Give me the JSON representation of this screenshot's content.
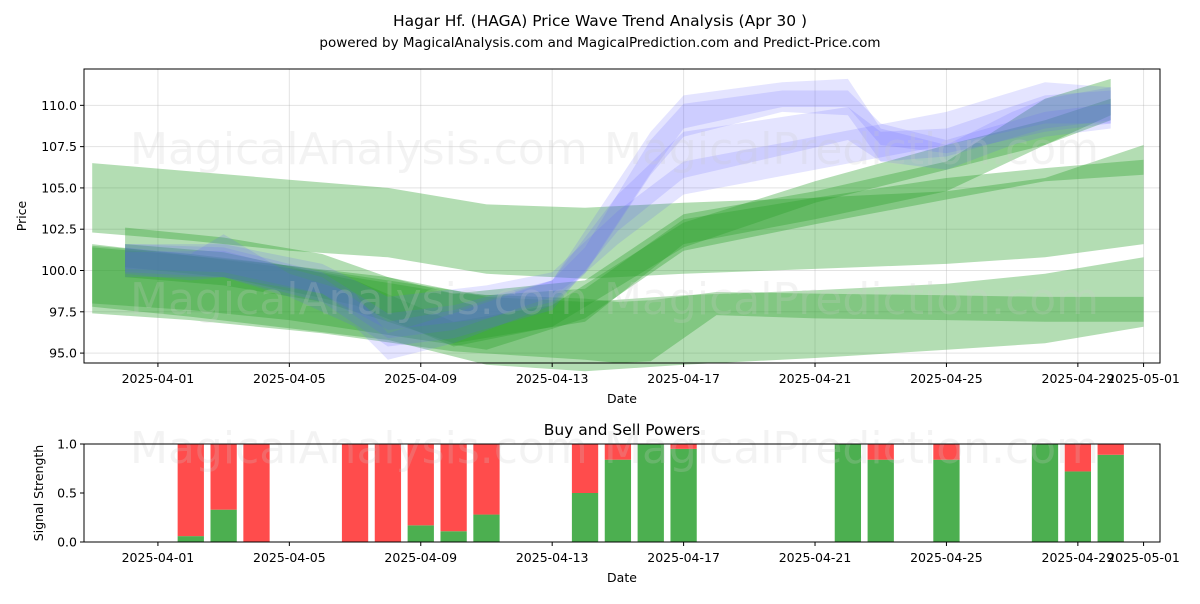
{
  "chart_data": [
    {
      "type": "area",
      "title": "Hagar Hf. (HAGA) Price Wave Trend Analysis (Apr 30 )",
      "subtitle": "powered by MagicalAnalysis.com and MagicalPrediction.com and Predict-Price.com",
      "xlabel": "Date",
      "ylabel": "Price",
      "x_ticks": [
        "2025-04-01",
        "2025-04-05",
        "2025-04-09",
        "2025-04-13",
        "2025-04-17",
        "2025-04-21",
        "2025-04-25",
        "2025-04-29",
        "2025-05-01"
      ],
      "y_ticks": [
        "95.0",
        "97.5",
        "100.0",
        "102.5",
        "105.0",
        "107.5",
        "110.0"
      ],
      "xlim": [
        "2025-03-29T18:00",
        "2025-05-01T12:00"
      ],
      "ylim": [
        94.4,
        112.2
      ],
      "grid": true,
      "watermarks": [
        "MagicalAnalysis.com",
        "MagicalPrediction.com"
      ],
      "colors": {
        "green": "#2ca02c",
        "blue": "#6060ff"
      },
      "green_bands": [
        {
          "x": [
            "2025-03-30",
            "2025-04-02",
            "2025-04-05",
            "2025-04-08",
            "2025-04-11",
            "2025-04-14",
            "2025-04-17",
            "2025-04-21",
            "2025-04-25",
            "2025-04-28",
            "2025-05-01"
          ],
          "lower": [
            102.3,
            101.8,
            101.2,
            100.8,
            99.8,
            99.5,
            99.8,
            100.1,
            100.4,
            100.8,
            101.6
          ],
          "upper": [
            106.5,
            106.0,
            105.5,
            105.0,
            104.0,
            103.8,
            104.1,
            104.4,
            104.8,
            105.6,
            107.6
          ]
        },
        {
          "x": [
            "2025-03-30",
            "2025-04-02",
            "2025-04-05",
            "2025-04-08",
            "2025-04-11",
            "2025-04-14",
            "2025-04-17",
            "2025-04-21",
            "2025-04-25",
            "2025-04-28",
            "2025-05-01"
          ],
          "lower": [
            97.8,
            97.2,
            96.5,
            95.8,
            94.3,
            93.9,
            94.3,
            94.7,
            95.2,
            95.6,
            96.6
          ],
          "upper": [
            101.5,
            101.0,
            100.3,
            99.6,
            98.4,
            98.1,
            98.5,
            98.8,
            99.2,
            99.8,
            100.8
          ]
        },
        {
          "x": [
            "2025-03-30",
            "2025-04-02",
            "2025-04-05",
            "2025-04-08",
            "2025-04-11",
            "2025-04-14",
            "2025-04-17",
            "2025-04-21",
            "2025-04-25",
            "2025-04-28",
            "2025-05-01"
          ],
          "lower": [
            98.0,
            97.6,
            97.0,
            96.1,
            95.2,
            97.1,
            101.2,
            102.8,
            104.3,
            105.4,
            105.8
          ],
          "upper": [
            101.4,
            100.9,
            100.3,
            99.4,
            98.5,
            98.9,
            103.1,
            104.4,
            105.6,
            106.2,
            106.7
          ]
        },
        {
          "x": [
            "2025-03-31",
            "2025-04-03",
            "2025-04-06",
            "2025-04-08",
            "2025-04-10",
            "2025-04-14",
            "2025-04-17",
            "2025-04-21",
            "2025-04-25",
            "2025-04-28",
            "2025-04-30"
          ],
          "lower": [
            99.6,
            99.1,
            98.1,
            96.9,
            95.6,
            96.9,
            101.6,
            103.1,
            104.8,
            107.6,
            109.4
          ],
          "upper": [
            102.6,
            102.0,
            101.0,
            99.6,
            98.6,
            99.4,
            103.4,
            104.8,
            106.6,
            110.4,
            111.6
          ]
        },
        {
          "x": [
            "2025-03-30",
            "2025-04-02",
            "2025-04-06",
            "2025-04-10",
            "2025-04-14",
            "2025-04-15",
            "2025-04-16",
            "2025-04-18",
            "2025-04-21",
            "2025-04-25",
            "2025-04-28",
            "2025-05-01"
          ],
          "lower": [
            97.4,
            97.0,
            96.2,
            95.1,
            94.6,
            94.4,
            94.5,
            97.3,
            97.1,
            97.0,
            96.9,
            96.9
          ],
          "upper": [
            101.6,
            100.9,
            99.9,
            98.6,
            98.3,
            98.1,
            98.2,
            98.7,
            98.6,
            98.5,
            98.4,
            98.4
          ]
        },
        {
          "x": [
            "2025-03-31",
            "2025-04-03",
            "2025-04-07",
            "2025-04-10",
            "2025-04-13",
            "2025-04-17",
            "2025-04-21",
            "2025-04-25",
            "2025-04-28",
            "2025-04-30"
          ],
          "lower": [
            100.2,
            99.6,
            97.9,
            95.4,
            96.6,
            101.4,
            104.1,
            106.1,
            107.6,
            109.1
          ],
          "upper": [
            101.6,
            101.1,
            99.4,
            96.9,
            97.9,
            102.9,
            105.4,
            107.6,
            109.1,
            110.4
          ]
        }
      ],
      "blue_bands": [
        {
          "x": [
            "2025-03-31",
            "2025-04-02",
            "2025-04-03",
            "2025-04-05",
            "2025-04-07",
            "2025-04-08",
            "2025-04-10",
            "2025-04-13",
            "2025-04-14",
            "2025-04-16",
            "2025-04-17",
            "2025-04-20",
            "2025-04-22",
            "2025-04-23",
            "2025-04-25",
            "2025-04-27",
            "2025-04-28",
            "2025-04-30"
          ],
          "lower": [
            99.8,
            99.4,
            99.6,
            98.4,
            96.6,
            94.6,
            95.6,
            97.9,
            99.8,
            105.8,
            108.1,
            109.6,
            109.4,
            106.6,
            106.1,
            107.6,
            108.1,
            108.6
          ],
          "upper": [
            101.4,
            101.0,
            102.2,
            99.8,
            98.6,
            96.2,
            97.4,
            99.4,
            102.4,
            108.4,
            110.6,
            111.4,
            111.6,
            108.6,
            107.6,
            109.6,
            110.4,
            111.1
          ]
        },
        {
          "x": [
            "2025-03-31",
            "2025-04-03",
            "2025-04-06",
            "2025-04-08",
            "2025-04-10",
            "2025-04-13",
            "2025-04-15",
            "2025-04-17",
            "2025-04-22",
            "2025-04-23",
            "2025-04-25",
            "2025-04-28",
            "2025-04-30"
          ],
          "lower": [
            99.6,
            99.6,
            98.1,
            95.4,
            95.9,
            97.6,
            102.4,
            105.6,
            107.9,
            106.6,
            106.9,
            108.6,
            109.1
          ],
          "upper": [
            101.6,
            101.4,
            99.9,
            97.4,
            97.9,
            99.4,
            104.6,
            108.4,
            109.9,
            108.4,
            108.6,
            110.6,
            110.9
          ]
        },
        {
          "x": [
            "2025-03-31",
            "2025-04-03",
            "2025-04-06",
            "2025-04-08",
            "2025-04-11",
            "2025-04-13",
            "2025-04-15",
            "2025-04-17",
            "2025-04-21",
            "2025-04-25",
            "2025-04-28",
            "2025-04-30"
          ],
          "lower": [
            99.9,
            99.6,
            98.6,
            96.4,
            97.1,
            98.1,
            101.6,
            104.6,
            106.1,
            107.6,
            108.9,
            108.9
          ],
          "upper": [
            101.6,
            101.6,
            100.4,
            98.4,
            99.1,
            99.9,
            103.6,
            106.6,
            108.1,
            109.6,
            111.4,
            111.1
          ]
        },
        {
          "x": [
            "2025-03-31",
            "2025-04-03",
            "2025-04-06",
            "2025-04-08",
            "2025-04-10",
            "2025-04-13",
            "2025-04-14",
            "2025-04-16",
            "2025-04-17",
            "2025-04-20",
            "2025-04-22",
            "2025-04-23",
            "2025-04-25",
            "2025-04-28",
            "2025-04-30"
          ],
          "lower": [
            100.1,
            99.9,
            98.6,
            95.9,
            96.4,
            98.4,
            99.9,
            105.9,
            108.6,
            109.9,
            109.9,
            107.6,
            107.1,
            108.4,
            108.9
          ],
          "upper": [
            101.1,
            101.2,
            99.6,
            96.9,
            97.6,
            99.4,
            101.4,
            107.9,
            110.1,
            110.9,
            110.9,
            108.9,
            107.9,
            109.6,
            110.1
          ]
        }
      ]
    },
    {
      "type": "bar",
      "title": "Buy and Sell Powers",
      "xlabel": "Date",
      "ylabel": "Signal Strength",
      "x_ticks": [
        "2025-04-01",
        "2025-04-05",
        "2025-04-09",
        "2025-04-13",
        "2025-04-17",
        "2025-04-21",
        "2025-04-25",
        "2025-04-29",
        "2025-05-01"
      ],
      "y_ticks": [
        "0.0",
        "0.5",
        "1.0"
      ],
      "xlim": [
        "2025-03-29T18:00",
        "2025-05-01T12:00"
      ],
      "ylim": [
        0,
        1
      ],
      "colors": {
        "buy": "#4caf50",
        "sell": "#ff4c4c"
      },
      "bars": [
        {
          "date": "2025-04-02",
          "buy": 0.06
        },
        {
          "date": "2025-04-03",
          "buy": 0.33
        },
        {
          "date": "2025-04-04",
          "buy": 0.0
        },
        {
          "date": "2025-04-07",
          "buy": 0.0
        },
        {
          "date": "2025-04-08",
          "buy": 0.0
        },
        {
          "date": "2025-04-09",
          "buy": 0.17
        },
        {
          "date": "2025-04-10",
          "buy": 0.11
        },
        {
          "date": "2025-04-11",
          "buy": 0.28
        },
        {
          "date": "2025-04-14",
          "buy": 0.5
        },
        {
          "date": "2025-04-15",
          "buy": 0.84
        },
        {
          "date": "2025-04-16",
          "buy": 1.0
        },
        {
          "date": "2025-04-17",
          "buy": 0.95
        },
        {
          "date": "2025-04-22",
          "buy": 1.0
        },
        {
          "date": "2025-04-23",
          "buy": 0.84
        },
        {
          "date": "2025-04-25",
          "buy": 0.84
        },
        {
          "date": "2025-04-28",
          "buy": 1.0
        },
        {
          "date": "2025-04-29",
          "buy": 0.72
        },
        {
          "date": "2025-04-30",
          "buy": 0.89
        }
      ]
    }
  ]
}
